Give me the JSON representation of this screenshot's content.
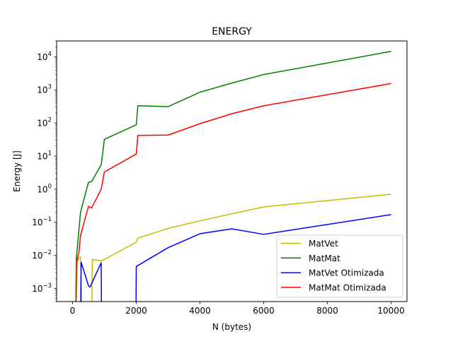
{
  "chart_data": {
    "type": "line",
    "title": "ENERGY",
    "xlabel": "N (bytes)",
    "ylabel": "Energy [J]",
    "xscale": "linear",
    "yscale": "log",
    "xlim": [
      -500,
      10500
    ],
    "ylim": [
      0.0004,
      30000
    ],
    "xticks": [
      0,
      2000,
      4000,
      6000,
      8000,
      10000
    ],
    "xtick_labels": [
      "0",
      "2000",
      "4000",
      "6000",
      "8000",
      "10000"
    ],
    "yticks": [
      0.001,
      0.01,
      0.1,
      1,
      10,
      100,
      1000,
      10000
    ],
    "ytick_labels": [
      {
        "base": "10",
        "exp": "−3"
      },
      {
        "base": "10",
        "exp": "−2"
      },
      {
        "base": "10",
        "exp": "−1"
      },
      {
        "base": "10",
        "exp": "0"
      },
      {
        "base": "10",
        "exp": "1"
      },
      {
        "base": "10",
        "exp": "2"
      },
      {
        "base": "10",
        "exp": "3"
      },
      {
        "base": "10",
        "exp": "4"
      }
    ],
    "grid": false,
    "legend": "bottom-right",
    "series": [
      {
        "name": "MatVet",
        "color": "#bfbf00",
        "points": [
          [
            100,
            0.0001
          ],
          [
            150,
            0.0065
          ],
          [
            200,
            0.008
          ],
          [
            250,
            0.009
          ],
          [
            300,
            0.0001
          ],
          [
            600,
            0.0001
          ],
          [
            620,
            0.0075
          ],
          [
            900,
            0.0068
          ],
          [
            1000,
            0.0075
          ],
          [
            2000,
            0.025
          ],
          [
            2050,
            0.033
          ],
          [
            3000,
            0.065
          ],
          [
            4000,
            0.11
          ],
          [
            5000,
            0.18
          ],
          [
            6000,
            0.29
          ],
          [
            10000,
            0.7
          ]
        ]
      },
      {
        "name": "MatMat",
        "color": "#008000",
        "points": [
          [
            100,
            0.0001
          ],
          [
            120,
            0.008
          ],
          [
            250,
            0.2
          ],
          [
            500,
            1.6
          ],
          [
            600,
            1.7
          ],
          [
            900,
            5.5
          ],
          [
            1000,
            32
          ],
          [
            2000,
            88
          ],
          [
            2050,
            330
          ],
          [
            3000,
            310
          ],
          [
            4000,
            850
          ],
          [
            5000,
            1600
          ],
          [
            6000,
            2900
          ],
          [
            10000,
            14500
          ]
        ]
      },
      {
        "name": "MatVet Otimizada",
        "color": "#0000ff",
        "points": [
          [
            250,
            0.0001
          ],
          [
            270,
            0.0062
          ],
          [
            500,
            0.0012
          ],
          [
            550,
            0.0011
          ],
          [
            900,
            0.006
          ],
          [
            910,
            0.0001
          ],
          [
            1990,
            0.0001
          ],
          [
            2000,
            0.0046
          ],
          [
            3000,
            0.017
          ],
          [
            4000,
            0.045
          ],
          [
            5000,
            0.063
          ],
          [
            6000,
            0.043
          ],
          [
            10000,
            0.17
          ]
        ]
      },
      {
        "name": "MatMat Otimizada",
        "color": "#ff0000",
        "points": [
          [
            100,
            0.0001
          ],
          [
            120,
            0.006
          ],
          [
            200,
            0.012
          ],
          [
            250,
            0.04
          ],
          [
            500,
            0.3
          ],
          [
            600,
            0.27
          ],
          [
            900,
            1.0
          ],
          [
            1000,
            3.3
          ],
          [
            2000,
            11.5
          ],
          [
            2050,
            42
          ],
          [
            3000,
            43
          ],
          [
            4000,
            95
          ],
          [
            5000,
            190
          ],
          [
            6000,
            330
          ],
          [
            10000,
            1550
          ]
        ]
      }
    ]
  }
}
